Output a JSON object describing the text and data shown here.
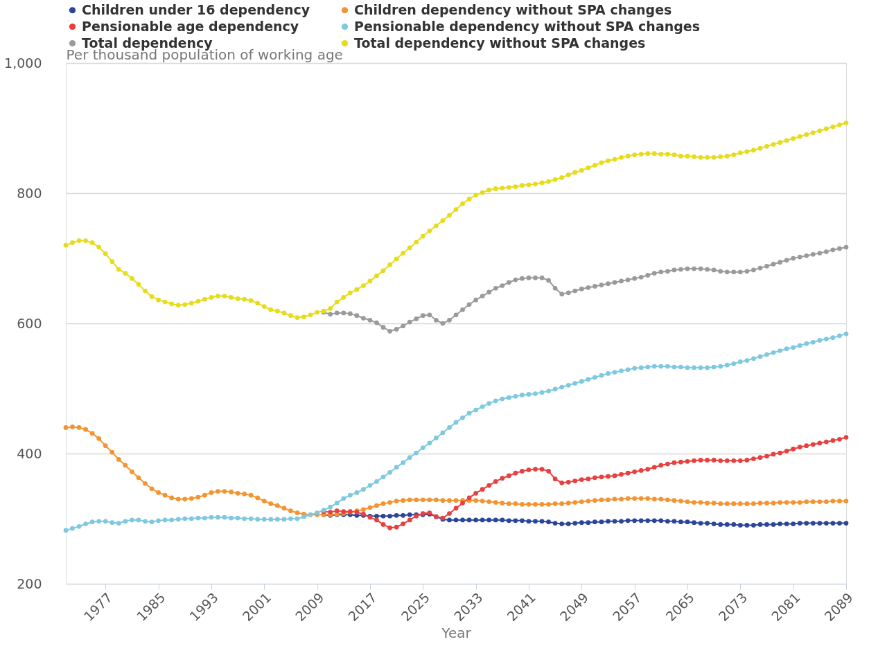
{
  "chart_data": {
    "type": "line",
    "xlabel": "Year",
    "ylabel": "Per thousand population of working age",
    "x": [
      1971,
      1972,
      1973,
      1974,
      1975,
      1976,
      1977,
      1978,
      1979,
      1980,
      1981,
      1982,
      1983,
      1984,
      1985,
      1986,
      1987,
      1988,
      1989,
      1990,
      1991,
      1992,
      1993,
      1994,
      1995,
      1996,
      1997,
      1998,
      1999,
      2000,
      2001,
      2002,
      2003,
      2004,
      2005,
      2006,
      2007,
      2008,
      2009,
      2010,
      2011,
      2012,
      2013,
      2014,
      2015,
      2016,
      2017,
      2018,
      2019,
      2020,
      2021,
      2022,
      2023,
      2024,
      2025,
      2026,
      2027,
      2028,
      2029,
      2030,
      2031,
      2032,
      2033,
      2034,
      2035,
      2036,
      2037,
      2038,
      2039,
      2040,
      2041,
      2042,
      2043,
      2044,
      2045,
      2046,
      2047,
      2048,
      2049,
      2050,
      2051,
      2052,
      2053,
      2054,
      2055,
      2056,
      2057,
      2058,
      2059,
      2060,
      2061,
      2062,
      2063,
      2064,
      2065,
      2066,
      2067,
      2068,
      2069,
      2070,
      2071,
      2072,
      2073,
      2074,
      2075,
      2076,
      2077,
      2078,
      2079,
      2080,
      2081,
      2082,
      2083,
      2084,
      2085,
      2086,
      2087,
      2088,
      2089
    ],
    "series": [
      {
        "name": "Children under 16 dependency",
        "color": "#2a4599",
        "values": [
          null,
          null,
          null,
          null,
          null,
          null,
          null,
          null,
          null,
          null,
          null,
          null,
          null,
          null,
          null,
          null,
          null,
          null,
          null,
          null,
          null,
          null,
          null,
          null,
          null,
          null,
          null,
          null,
          null,
          null,
          null,
          null,
          null,
          null,
          null,
          null,
          null,
          null,
          null,
          306,
          305,
          306,
          306,
          306,
          305,
          305,
          304,
          304,
          304,
          304,
          305,
          305,
          306,
          306,
          306,
          307,
          303,
          299,
          298,
          298,
          298,
          298,
          298,
          298,
          298,
          298,
          298,
          297,
          297,
          297,
          296,
          296,
          296,
          295,
          293,
          292,
          292,
          293,
          294,
          294,
          295,
          295,
          296,
          296,
          296,
          297,
          297,
          297,
          297,
          297,
          297,
          296,
          296,
          295,
          295,
          294,
          293,
          293,
          292,
          291,
          291,
          291,
          290,
          290,
          290,
          291,
          291,
          291,
          292,
          292,
          292,
          293,
          293,
          293,
          293,
          293,
          293,
          293,
          293
        ]
      },
      {
        "name": "Children dependency without SPA changes",
        "color": "#f39431",
        "values": [
          440,
          441,
          440,
          437,
          431,
          423,
          412,
          402,
          391,
          382,
          372,
          363,
          354,
          346,
          340,
          336,
          332,
          330,
          330,
          331,
          333,
          336,
          340,
          342,
          342,
          341,
          339,
          338,
          336,
          332,
          327,
          323,
          320,
          316,
          312,
          309,
          307,
          306,
          306,
          306,
          306,
          307,
          308,
          310,
          312,
          314,
          317,
          320,
          323,
          325,
          327,
          328,
          329,
          329,
          329,
          329,
          329,
          328,
          328,
          328,
          328,
          328,
          328,
          327,
          326,
          325,
          324,
          323,
          323,
          322,
          322,
          322,
          322,
          322,
          323,
          323,
          324,
          325,
          326,
          327,
          328,
          329,
          329,
          330,
          330,
          331,
          331,
          331,
          331,
          330,
          330,
          329,
          328,
          327,
          326,
          325,
          325,
          324,
          324,
          323,
          323,
          323,
          323,
          323,
          323,
          324,
          324,
          324,
          325,
          325,
          325,
          325,
          326,
          326,
          326,
          326,
          327,
          327,
          327
        ]
      },
      {
        "name": "Pensionable age dependency",
        "color": "#e83f3f",
        "values": [
          null,
          null,
          null,
          null,
          null,
          null,
          null,
          null,
          null,
          null,
          null,
          null,
          null,
          null,
          null,
          null,
          null,
          null,
          null,
          null,
          null,
          null,
          null,
          null,
          null,
          null,
          null,
          null,
          null,
          null,
          null,
          null,
          null,
          null,
          null,
          null,
          null,
          null,
          null,
          311,
          310,
          312,
          311,
          311,
          310,
          307,
          302,
          298,
          291,
          286,
          287,
          292,
          298,
          304,
          308,
          309,
          303,
          301,
          308,
          316,
          324,
          332,
          339,
          345,
          351,
          357,
          362,
          366,
          370,
          373,
          375,
          376,
          376,
          373,
          361,
          355,
          356,
          358,
          360,
          361,
          363,
          364,
          365,
          366,
          368,
          370,
          372,
          374,
          376,
          379,
          382,
          384,
          386,
          387,
          388,
          389,
          390,
          390,
          390,
          389,
          389,
          389,
          389,
          390,
          392,
          394,
          396,
          399,
          401,
          404,
          407,
          410,
          412,
          414,
          416,
          418,
          420,
          422,
          425
        ]
      },
      {
        "name": "Pensionable dependency without SPA changes",
        "color": "#7ec8e0",
        "values": [
          282,
          285,
          288,
          292,
          295,
          296,
          296,
          294,
          293,
          296,
          298,
          298,
          296,
          295,
          297,
          298,
          298,
          299,
          300,
          300,
          301,
          301,
          302,
          302,
          302,
          301,
          301,
          300,
          300,
          299,
          299,
          299,
          299,
          299,
          300,
          300,
          303,
          306,
          309,
          313,
          318,
          324,
          331,
          336,
          340,
          345,
          351,
          357,
          364,
          371,
          379,
          386,
          394,
          401,
          409,
          416,
          424,
          432,
          440,
          448,
          455,
          462,
          467,
          472,
          477,
          481,
          484,
          486,
          488,
          490,
          491,
          492,
          494,
          496,
          499,
          502,
          505,
          508,
          511,
          514,
          517,
          520,
          523,
          525,
          527,
          529,
          531,
          532,
          533,
          534,
          534,
          534,
          533,
          533,
          532,
          532,
          532,
          532,
          533,
          534,
          536,
          538,
          541,
          543,
          546,
          549,
          552,
          555,
          558,
          561,
          563,
          566,
          569,
          571,
          574,
          576,
          578,
          581,
          584
        ]
      },
      {
        "name": "Total dependency",
        "color": "#9a9a9a",
        "values": [
          null,
          null,
          null,
          null,
          null,
          null,
          null,
          null,
          null,
          null,
          null,
          null,
          null,
          null,
          null,
          null,
          null,
          null,
          null,
          null,
          null,
          null,
          null,
          null,
          null,
          null,
          null,
          null,
          null,
          null,
          null,
          null,
          null,
          null,
          null,
          null,
          null,
          null,
          null,
          617,
          614,
          616,
          616,
          615,
          612,
          608,
          605,
          601,
          594,
          588,
          591,
          596,
          602,
          607,
          612,
          613,
          605,
          600,
          605,
          613,
          621,
          629,
          636,
          642,
          648,
          654,
          658,
          663,
          667,
          669,
          670,
          670,
          670,
          666,
          654,
          645,
          647,
          650,
          653,
          655,
          657,
          659,
          661,
          663,
          665,
          667,
          669,
          671,
          674,
          677,
          679,
          680,
          682,
          683,
          684,
          684,
          684,
          683,
          682,
          680,
          679,
          679,
          679,
          680,
          682,
          685,
          688,
          691,
          694,
          697,
          700,
          702,
          704,
          706,
          708,
          710,
          713,
          715,
          717
        ]
      },
      {
        "name": "Total dependency without SPA changes",
        "color": "#e6dc1a",
        "values": [
          720,
          724,
          727,
          727,
          724,
          717,
          707,
          695,
          683,
          677,
          669,
          660,
          650,
          641,
          636,
          633,
          630,
          628,
          629,
          631,
          634,
          637,
          640,
          642,
          642,
          640,
          638,
          637,
          635,
          631,
          626,
          621,
          619,
          616,
          612,
          609,
          610,
          613,
          617,
          619,
          623,
          633,
          640,
          647,
          652,
          658,
          665,
          673,
          681,
          690,
          699,
          708,
          716,
          725,
          734,
          742,
          750,
          758,
          766,
          775,
          784,
          791,
          797,
          801,
          805,
          807,
          808,
          809,
          810,
          812,
          813,
          814,
          816,
          818,
          821,
          824,
          828,
          832,
          835,
          839,
          843,
          847,
          850,
          852,
          855,
          857,
          859,
          860,
          861,
          861,
          860,
          860,
          859,
          857,
          857,
          856,
          855,
          855,
          855,
          856,
          857,
          859,
          862,
          864,
          866,
          869,
          872,
          875,
          878,
          881,
          884,
          887,
          890,
          893,
          896,
          899,
          902,
          905,
          908
        ]
      }
    ],
    "xlim": [
      1971,
      2089
    ],
    "xticks": [
      1977,
      1985,
      1993,
      2001,
      2009,
      2017,
      2025,
      2033,
      2041,
      2049,
      2057,
      2065,
      2073,
      2081,
      2089
    ],
    "ylim": [
      200,
      1000
    ],
    "yticks": [
      200,
      400,
      600,
      800,
      {
        "value": 1000,
        "label": "1,000"
      }
    ],
    "grid": "y",
    "legend": "top",
    "marker": "circle",
    "line_style": "solid"
  }
}
